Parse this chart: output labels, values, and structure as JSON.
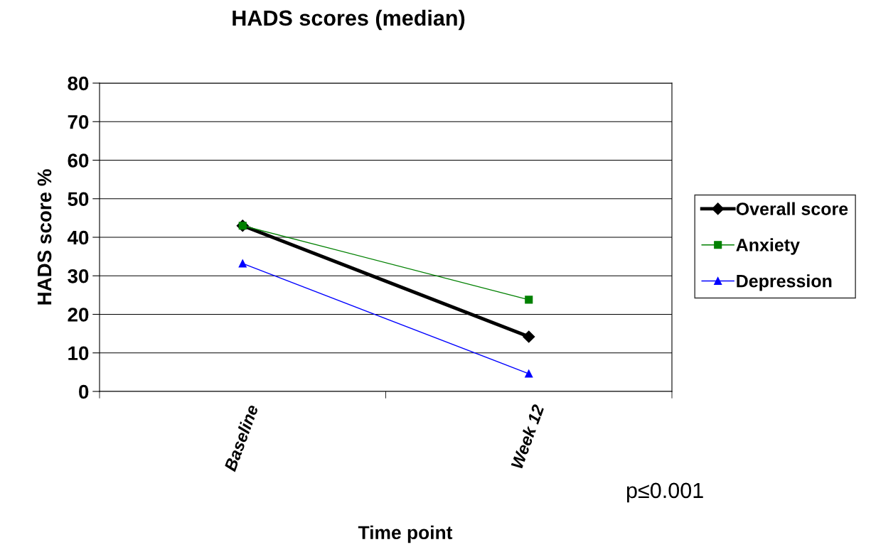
{
  "chart_data": {
    "type": "line",
    "title": "HADS scores (median)",
    "xlabel": "Time point",
    "ylabel": "HADS score %",
    "categories": [
      "Baseline",
      "Week 12"
    ],
    "series": [
      {
        "name": "Overall score",
        "color": "#000000",
        "marker": "diamond",
        "values": [
          43,
          14.2
        ]
      },
      {
        "name": "Anxiety",
        "color": "#008000",
        "marker": "square",
        "values": [
          43,
          23.8
        ]
      },
      {
        "name": "Depression",
        "color": "#0000ff",
        "marker": "triangle",
        "values": [
          33.2,
          4.6
        ]
      }
    ],
    "ylim": [
      0,
      80
    ],
    "yticks": [
      0,
      10,
      20,
      30,
      40,
      50,
      60,
      70,
      80
    ],
    "grid": "y",
    "legend": "right",
    "annotations": [
      "p≤0.001"
    ]
  }
}
